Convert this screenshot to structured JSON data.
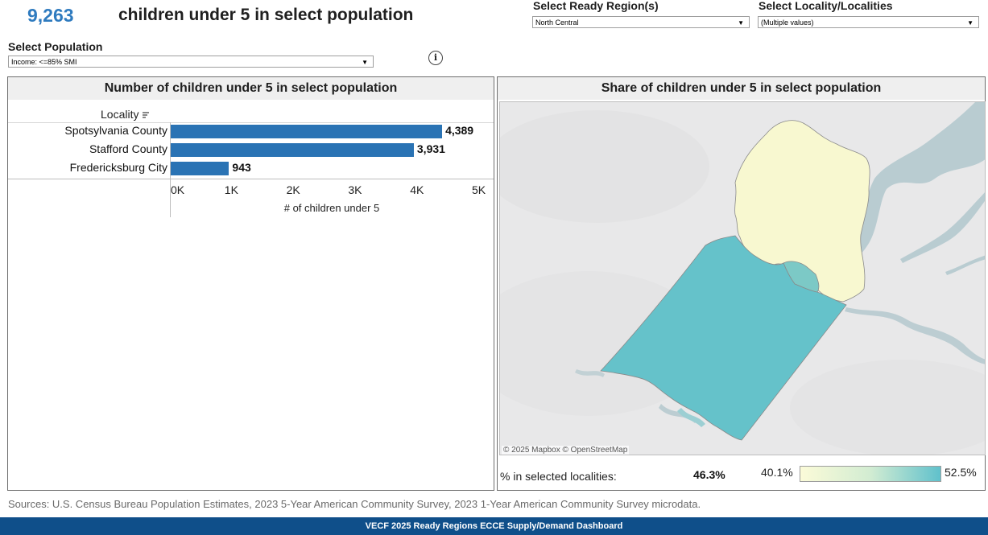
{
  "header": {
    "total_count": "9,263",
    "caption": "children under 5 in select population"
  },
  "filters": {
    "region": {
      "label": "Select Ready Region(s)",
      "value": "North Central"
    },
    "locality": {
      "label": "Select Locality/Localities",
      "value": "(Multiple values)"
    },
    "population": {
      "label": "Select Population",
      "value": "Income: <=85% SMI"
    },
    "info_icon_glyph": "i"
  },
  "left_panel": {
    "title": "Number of children under 5 in select population",
    "column_header": "Locality",
    "sort_icon": "sort-icon"
  },
  "chart_data": {
    "type": "bar",
    "orientation": "horizontal",
    "categories": [
      "Spotsylvania County",
      "Stafford County",
      "Fredericksburg City"
    ],
    "values": [
      4389,
      3931,
      943
    ],
    "value_labels": [
      "4,389",
      "3,931",
      "943"
    ],
    "xlabel": "# of children under 5",
    "xlim": [
      0,
      5000
    ],
    "ticks": [
      0,
      1000,
      2000,
      3000,
      4000,
      5000
    ],
    "tick_labels": [
      "0K",
      "1K",
      "2K",
      "3K",
      "4K",
      "5K"
    ],
    "bar_color": "#2a73b4"
  },
  "right_panel": {
    "title": "Share of children under 5 in select population",
    "attribution": "© 2025 Mapbox  © OpenStreetMap",
    "summary_label": "% in selected localities:",
    "summary_value": "46.3%",
    "legend_min": "40.1%",
    "legend_max": "52.5%",
    "colors": {
      "stafford": "#f8f8d0",
      "spotsylvania": "#65c2ca",
      "fredericksburg": "#7cc9c6",
      "water": "#b9ccd1"
    }
  },
  "sources": "Sources: U.S. Census Bureau Population Estimates, 2023 5-Year American Community Survey, 2023 1-Year American Community Survey microdata.",
  "footer": "VECF 2025 Ready Regions ECCE Supply/Demand Dashboard"
}
